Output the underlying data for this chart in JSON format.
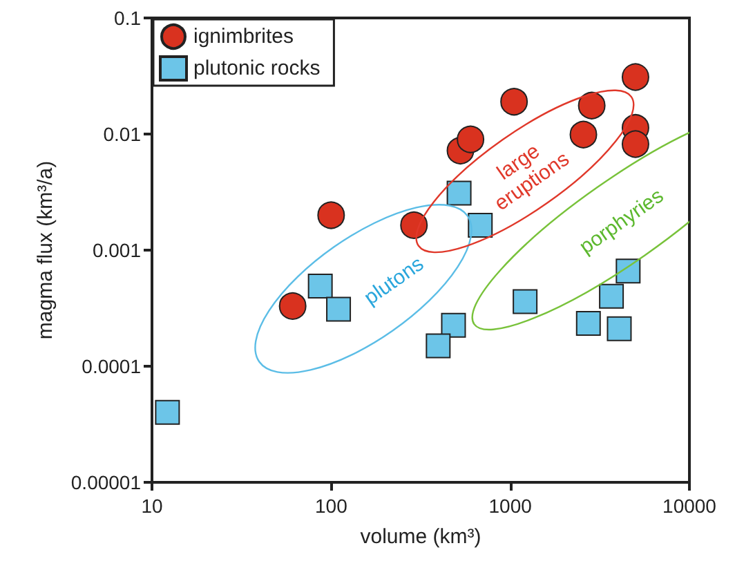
{
  "chart_data": {
    "type": "scatter",
    "xlabel": "volume (km³)",
    "ylabel": "magma flux (km³/a)",
    "log": "xy",
    "xlim": [
      10,
      10000
    ],
    "xticks": [
      10,
      100,
      1000,
      10000
    ],
    "ylim": [
      1e-05,
      0.1
    ],
    "yticks": [
      {
        "value": 1e-05,
        "label": "0.00001"
      },
      0.0001,
      0.001,
      0.01,
      0.1
    ],
    "grid": false,
    "legend": "top left",
    "series": [
      {
        "name": "ignimbrites",
        "color": "#d9321f",
        "marker": "circle",
        "x": [
          100,
          290,
          527,
          600,
          1050,
          2560,
          2850,
          5000,
          5000,
          5000,
          61
        ],
        "values": [
          0.002,
          0.00164,
          0.0072,
          0.009,
          0.019,
          0.0099,
          0.0176,
          0.031,
          0.0113,
          0.0082,
          0.00033
        ]
      },
      {
        "name": "plutonic rocks",
        "color": "#6cc5e8",
        "marker": "square",
        "x": [
          518,
          680,
          12.2,
          87,
          110,
          482,
          396,
          1210,
          2730,
          3670,
          4060,
          4550
        ],
        "values": [
          0.0031,
          0.00164,
          4e-05,
          0.00049,
          0.00031,
          0.000225,
          0.00015,
          0.00036,
          0.000234,
          0.0004,
          0.00021,
          0.00066
        ]
      }
    ],
    "annotations": [
      "plutons",
      "large eruptions",
      "porphyries"
    ]
  }
}
